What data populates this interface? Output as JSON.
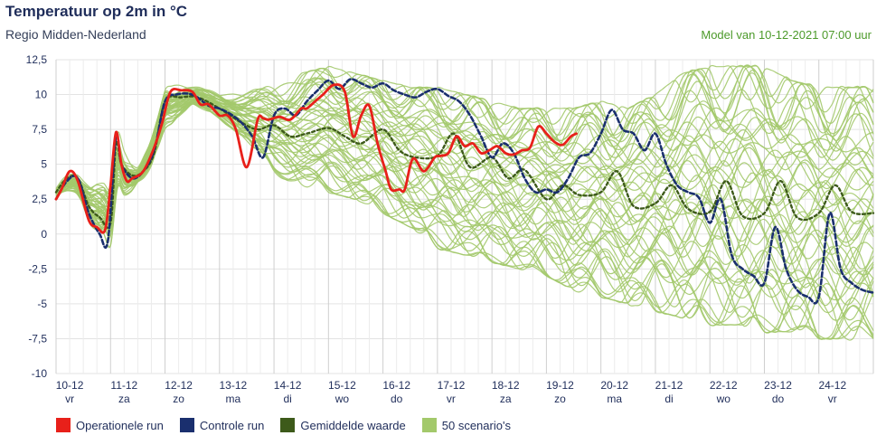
{
  "header": {
    "title": "Temperatuur op 2m in °C",
    "subtitle": "Regio Midden-Nederland",
    "model_info": "Model van 10-12-2021 07:00 uur"
  },
  "legend": [
    {
      "label": "Operationele run",
      "color": "#e8201a"
    },
    {
      "label": "Controle run",
      "color": "#1a2f6e"
    },
    {
      "label": "Gemiddelde waarde",
      "color": "#3d5a1a"
    },
    {
      "label": "50 scenario's",
      "color": "#a3c96b"
    }
  ],
  "chart_data": {
    "type": "line",
    "title": "Temperatuur op 2m in °C",
    "ylim": [
      -10,
      12.5
    ],
    "xlim": [
      0,
      15
    ],
    "y_ticks": [
      "12,5",
      "10",
      "7,5",
      "5",
      "2,5",
      "0",
      "-2,5",
      "-5",
      "-7,5",
      "-10"
    ],
    "y_tick_values": [
      12.5,
      10,
      7.5,
      5,
      2.5,
      0,
      -2.5,
      -5,
      -7.5,
      -10
    ],
    "x_tick_dates": [
      "10-12",
      "11-12",
      "12-12",
      "13-12",
      "14-12",
      "15-12",
      "16-12",
      "17-12",
      "18-12",
      "19-12",
      "20-12",
      "21-12",
      "22-12",
      "23-12",
      "24-12"
    ],
    "x_tick_days": [
      "vr",
      "za",
      "zo",
      "ma",
      "di",
      "wo",
      "do",
      "vr",
      "za",
      "zo",
      "ma",
      "di",
      "wo",
      "do",
      "vr"
    ],
    "grid": true,
    "series": [
      {
        "name": "Operationele run",
        "color": "#e8201a",
        "x": [
          0,
          0.1,
          0.25,
          0.4,
          0.6,
          0.75,
          0.9,
          1.0,
          1.1,
          1.2,
          1.3,
          1.4,
          1.6,
          1.8,
          1.95,
          2.1,
          2.3,
          2.5,
          2.65,
          2.8,
          3.0,
          3.15,
          3.3,
          3.5,
          3.7,
          3.8,
          3.9,
          4.1,
          4.3,
          4.5,
          4.6,
          4.75,
          4.9,
          5.1,
          5.3,
          5.45,
          5.6,
          5.75,
          5.9,
          6.05,
          6.15,
          6.3,
          6.4,
          6.55,
          6.75,
          6.95,
          7.05,
          7.2,
          7.35,
          7.5,
          7.65,
          7.8,
          7.95,
          8.1,
          8.25,
          8.4,
          8.55,
          8.7,
          8.85,
          9.0,
          9.15,
          9.3,
          9.45,
          9.55
        ],
        "values": [
          2.5,
          3.2,
          4.5,
          3.8,
          1.0,
          0.5,
          0.3,
          3.5,
          7.3,
          5.0,
          3.8,
          4.0,
          4.5,
          6.2,
          8.0,
          10.2,
          10.3,
          10.2,
          9.3,
          9.3,
          8.5,
          8.5,
          7.5,
          4.8,
          8.2,
          8.3,
          8.2,
          8.4,
          8.2,
          9.0,
          9.0,
          9.5,
          10.0,
          10.7,
          10.2,
          7.0,
          8.5,
          9.2,
          6.5,
          4.5,
          3.2,
          3.2,
          3.2,
          5.4,
          4.5,
          5.5,
          5.6,
          5.8,
          7.0,
          6.3,
          6.5,
          5.8,
          6.0,
          6.3,
          5.8,
          5.7,
          6.0,
          6.2,
          7.7,
          7.2,
          6.6,
          6.4,
          7.0,
          7.2
        ]
      },
      {
        "name": "Controle run",
        "color": "#1a2f6e",
        "x": [
          0,
          0.2,
          0.4,
          0.6,
          0.8,
          0.95,
          1.1,
          1.2,
          1.4,
          1.6,
          1.8,
          2.0,
          2.2,
          2.5,
          2.8,
          3.0,
          3.2,
          3.4,
          3.6,
          3.8,
          4.0,
          4.2,
          4.4,
          4.6,
          4.8,
          5.0,
          5.2,
          5.4,
          5.6,
          5.8,
          6.0,
          6.2,
          6.4,
          6.6,
          6.8,
          7.0,
          7.2,
          7.4,
          7.6,
          7.8,
          8.0,
          8.2,
          8.4,
          8.6,
          8.8,
          9.0,
          9.2,
          9.4,
          9.6,
          9.8,
          10.0,
          10.2,
          10.4,
          10.6,
          10.8,
          11.0,
          11.2,
          11.4,
          11.6,
          11.8,
          12.0,
          12.2,
          12.4,
          12.6,
          12.8,
          13.0,
          13.2,
          13.4,
          13.6,
          13.8,
          14.0,
          14.2,
          14.4,
          14.6,
          14.8,
          15.0
        ],
        "values": [
          2.5,
          3.8,
          4.0,
          1.5,
          0.0,
          -0.5,
          7.0,
          5.0,
          4.0,
          4.5,
          6.0,
          9.5,
          10.0,
          10.0,
          9.2,
          9.0,
          8.6,
          8.0,
          7.0,
          5.5,
          8.5,
          9.0,
          8.5,
          9.5,
          10.3,
          11.0,
          10.4,
          11.1,
          10.8,
          10.5,
          10.8,
          10.3,
          10.0,
          9.8,
          10.2,
          10.4,
          9.9,
          9.5,
          8.5,
          7.0,
          5.5,
          6.5,
          5.8,
          4.0,
          3.0,
          3.2,
          3.0,
          4.0,
          5.5,
          5.8,
          7.2,
          8.9,
          7.5,
          7.2,
          6.0,
          7.2,
          5.0,
          3.5,
          3.0,
          2.6,
          0.8,
          2.5,
          -1.5,
          -2.5,
          -3.0,
          -3.5,
          0.5,
          -2.5,
          -4.0,
          -4.5,
          -4.5,
          1.5,
          -2.5,
          -3.5,
          -4.0,
          -4.2
        ]
      },
      {
        "name": "Gemiddelde waarde",
        "color": "#3d5a1a",
        "x": [
          0,
          0.2,
          0.4,
          0.6,
          0.8,
          1.0,
          1.1,
          1.2,
          1.4,
          1.6,
          1.8,
          2.0,
          2.3,
          2.6,
          3.0,
          3.4,
          3.7,
          4.0,
          4.3,
          4.6,
          5.0,
          5.3,
          5.6,
          6.0,
          6.3,
          6.6,
          7.0,
          7.3,
          7.6,
          8.0,
          8.3,
          8.6,
          9.0,
          9.3,
          9.6,
          10.0,
          10.3,
          10.6,
          11.0,
          11.3,
          11.6,
          12.0,
          12.3,
          12.6,
          13.0,
          13.3,
          13.6,
          14.0,
          14.3,
          14.6,
          15.0
        ],
        "values": [
          3.0,
          4.0,
          4.0,
          2.0,
          1.2,
          0.8,
          6.5,
          5.0,
          4.2,
          4.5,
          5.8,
          9.5,
          9.8,
          9.8,
          9.0,
          8.0,
          7.5,
          7.8,
          7.0,
          7.2,
          7.6,
          7.0,
          6.5,
          7.5,
          6.0,
          5.5,
          5.6,
          7.2,
          4.8,
          5.5,
          4.0,
          4.6,
          2.5,
          3.5,
          2.8,
          3.0,
          4.5,
          2.0,
          2.2,
          3.5,
          1.8,
          1.6,
          3.8,
          1.3,
          1.5,
          3.8,
          1.2,
          1.5,
          3.5,
          1.6,
          1.5
        ]
      }
    ],
    "scenario_band": {
      "name": "50 scenario's",
      "color": "#a3c96b",
      "x": [
        0,
        0.5,
        1.0,
        1.5,
        2.0,
        2.5,
        3.0,
        3.5,
        4.0,
        4.5,
        5.0,
        5.5,
        6.0,
        6.5,
        7.0,
        7.5,
        8.0,
        8.5,
        9.0,
        9.5,
        10.0,
        10.5,
        11.0,
        11.5,
        12.0,
        12.5,
        13.0,
        13.5,
        14.0,
        14.5,
        15.0
      ],
      "min": [
        1.5,
        0.0,
        -2.5,
        3.0,
        6.0,
        9.0,
        8.0,
        6.5,
        4.0,
        3.5,
        3.0,
        2.5,
        1.5,
        0.5,
        -1.0,
        -1.5,
        -2.0,
        -2.5,
        -3.0,
        -4.0,
        -4.5,
        -5.0,
        -5.5,
        -6.0,
        -6.5,
        -6.5,
        -7.0,
        -7.0,
        -7.5,
        -7.5,
        -7.5
      ],
      "max": [
        4.0,
        5.0,
        8.0,
        5.0,
        11.0,
        10.8,
        10.5,
        10.5,
        11.0,
        11.5,
        12.0,
        11.5,
        11.0,
        10.5,
        10.5,
        10.0,
        9.5,
        9.0,
        9.0,
        9.0,
        9.5,
        9.0,
        10.0,
        11.5,
        12.0,
        12.0,
        12.0,
        11.0,
        10.5,
        10.5,
        10.5
      ]
    }
  }
}
